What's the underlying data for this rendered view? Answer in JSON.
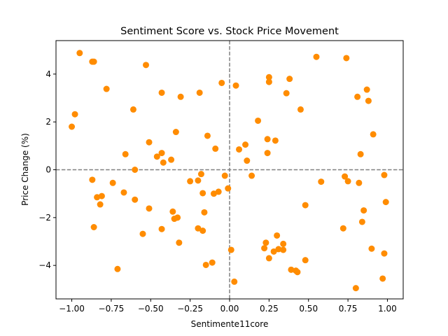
{
  "chart_data": {
    "type": "scatter",
    "title": "Sentiment Score vs. Stock Price Movement",
    "xlabel": "Sentimente11core",
    "ylabel": "Price Change (%)",
    "xlim": [
      -1.1,
      1.1
    ],
    "ylim": [
      -5.4,
      5.4
    ],
    "xticks": [
      -1.0,
      -0.75,
      -0.5,
      -0.25,
      0.0,
      0.25,
      0.5,
      0.75,
      1.0
    ],
    "xtick_labels": [
      "−1.00",
      "−0.75",
      "−0.50",
      "−0.25",
      "0.00",
      "0.25",
      "0.50",
      "0.75",
      "1.00"
    ],
    "yticks": [
      -4,
      -2,
      0,
      2,
      4
    ],
    "ytick_labels": [
      "−4",
      "−2",
      "0",
      "2",
      "4"
    ],
    "grid": false,
    "reference_lines": {
      "x": 0,
      "y": 0,
      "style": "dashed",
      "color": "#808080"
    },
    "marker_color": "#ff8c00",
    "points": [
      [
        -0.95,
        4.88
      ],
      [
        -0.87,
        4.52
      ],
      [
        -0.86,
        4.52
      ],
      [
        -0.78,
        3.38
      ],
      [
        -0.53,
        4.38
      ],
      [
        -0.43,
        3.22
      ],
      [
        -0.31,
        3.05
      ],
      [
        -0.19,
        3.22
      ],
      [
        -0.05,
        3.63
      ],
      [
        0.04,
        3.52
      ],
      [
        -1.0,
        1.8
      ],
      [
        -0.98,
        2.32
      ],
      [
        -0.61,
        2.52
      ],
      [
        -0.51,
        1.15
      ],
      [
        -0.46,
        0.55
      ],
      [
        -0.43,
        0.7
      ],
      [
        -0.42,
        0.3
      ],
      [
        -0.37,
        0.42
      ],
      [
        -0.34,
        1.58
      ],
      [
        -0.14,
        1.42
      ],
      [
        -0.09,
        0.88
      ],
      [
        -0.66,
        0.65
      ],
      [
        -0.6,
        0.0
      ],
      [
        -0.87,
        -0.42
      ],
      [
        -0.84,
        -1.15
      ],
      [
        -0.82,
        -1.45
      ],
      [
        -0.81,
        -1.1
      ],
      [
        -0.86,
        -2.4
      ],
      [
        -0.67,
        -0.95
      ],
      [
        -0.74,
        -0.55
      ],
      [
        -0.6,
        -1.25
      ],
      [
        -0.51,
        -1.62
      ],
      [
        -0.55,
        -2.68
      ],
      [
        -0.43,
        -2.48
      ],
      [
        -0.36,
        -1.75
      ],
      [
        -0.35,
        -2.05
      ],
      [
        -0.33,
        -2.0
      ],
      [
        -0.32,
        -3.05
      ],
      [
        -0.25,
        -0.48
      ],
      [
        -0.2,
        -0.45
      ],
      [
        -0.18,
        -0.18
      ],
      [
        -0.17,
        -0.98
      ],
      [
        -0.16,
        -1.78
      ],
      [
        -0.17,
        -2.55
      ],
      [
        -0.2,
        -2.45
      ],
      [
        -0.1,
        -1.0
      ],
      [
        -0.07,
        -0.92
      ],
      [
        -0.03,
        -0.25
      ],
      [
        -0.01,
        -0.78
      ],
      [
        -0.15,
        -3.98
      ],
      [
        -0.11,
        -3.88
      ],
      [
        -0.71,
        -4.15
      ],
      [
        0.01,
        -3.35
      ],
      [
        0.03,
        -4.68
      ],
      [
        0.06,
        0.85
      ],
      [
        0.1,
        1.05
      ],
      [
        0.11,
        0.38
      ],
      [
        0.14,
        -0.25
      ],
      [
        0.18,
        2.05
      ],
      [
        0.24,
        1.28
      ],
      [
        0.24,
        0.7
      ],
      [
        0.29,
        1.22
      ],
      [
        0.25,
        3.87
      ],
      [
        0.25,
        3.67
      ],
      [
        0.36,
        3.2
      ],
      [
        0.38,
        3.8
      ],
      [
        0.45,
        2.52
      ],
      [
        0.55,
        4.72
      ],
      [
        0.74,
        4.67
      ],
      [
        0.23,
        -3.05
      ],
      [
        0.22,
        -3.28
      ],
      [
        0.25,
        -3.7
      ],
      [
        0.28,
        -3.42
      ],
      [
        0.3,
        -2.75
      ],
      [
        0.31,
        -3.32
      ],
      [
        0.34,
        -3.35
      ],
      [
        0.34,
        -3.1
      ],
      [
        0.39,
        -4.18
      ],
      [
        0.42,
        -4.22
      ],
      [
        0.43,
        -4.28
      ],
      [
        0.48,
        -3.78
      ],
      [
        0.48,
        -1.48
      ],
      [
        0.58,
        -0.5
      ],
      [
        0.72,
        -2.45
      ],
      [
        0.73,
        -0.28
      ],
      [
        0.75,
        -0.48
      ],
      [
        0.82,
        -0.55
      ],
      [
        0.81,
        3.05
      ],
      [
        0.87,
        3.35
      ],
      [
        0.88,
        2.88
      ],
      [
        0.83,
        0.65
      ],
      [
        0.91,
        1.48
      ],
      [
        0.98,
        -0.22
      ],
      [
        0.99,
        -1.35
      ],
      [
        0.85,
        -1.7
      ],
      [
        0.84,
        -2.18
      ],
      [
        0.9,
        -3.3
      ],
      [
        0.98,
        -3.5
      ],
      [
        0.97,
        -4.55
      ],
      [
        0.8,
        -4.95
      ]
    ]
  }
}
